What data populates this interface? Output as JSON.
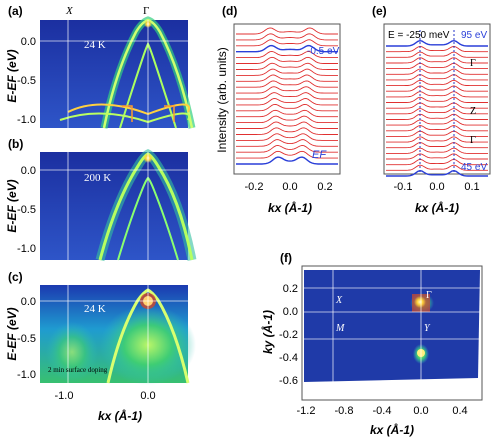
{
  "colors": {
    "red_curve": "#e03030",
    "blue_curve": "#2a3fd8",
    "map_bg": "#1f3aa8",
    "guide": "#ffffff",
    "panel_e_guide": "#2436c8"
  },
  "panel_a": {
    "label": "(a)",
    "temperature": "24 K",
    "x_point": "X",
    "gamma_point": "Γ"
  },
  "panel_b": {
    "label": "(b)",
    "temperature": "200 K"
  },
  "panel_c": {
    "label": "(c)",
    "temperature": "24 K",
    "note": "2 min surface doping"
  },
  "panel_d": {
    "label": "(d)",
    "curve_label_top": "-0.5 eV",
    "curve_label_bottom": "EF",
    "ylabel": "Intensity (arb. units)"
  },
  "panel_e": {
    "label": "(e)",
    "energy_note": "E = -250 meV",
    "hv_top": "95 eV",
    "hv_bottom": "45 eV",
    "points": [
      "Γ",
      "Z",
      "Γ"
    ]
  },
  "panel_f": {
    "label": "(f)",
    "points": [
      "Γ",
      "X",
      "M",
      "Y"
    ]
  },
  "axes": {
    "energy_label": "E-EF (eV)",
    "kx_label": "kx (Å-1)",
    "ky_label": "ky (Å-1)",
    "energy_ticks": [
      "0.0",
      "-0.5",
      "-1.0"
    ],
    "abc_kx_ticks": [
      "-1.0",
      "0.0"
    ],
    "d_kx_ticks": [
      "-0.2",
      "0.0",
      "0.2"
    ],
    "e_kx_ticks": [
      "-0.1",
      "0.0",
      "0.1"
    ],
    "f_kx_ticks": [
      "-1.2",
      "-0.8",
      "-0.4",
      "0.0",
      "0.4"
    ],
    "f_ky_ticks": [
      "0.2",
      "0.0",
      "-0.2",
      "-0.4",
      "-0.6"
    ]
  }
}
